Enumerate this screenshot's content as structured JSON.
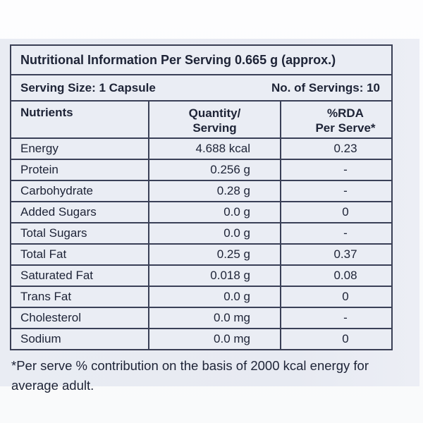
{
  "label": {
    "title": "Nutritional Information Per Serving 0.665 g (approx.)",
    "serving_size": "Serving Size: 1 Capsule",
    "servings_count": "No. of Servings: 10",
    "colors": {
      "label_background": "#e8ebf2",
      "border": "#3a4057",
      "text": "#1d2336"
    }
  },
  "table": {
    "headers": {
      "col1": "Nutrients",
      "col2_line1": "Quantity/",
      "col2_line2": "Serving",
      "col3_line1": "%RDA",
      "col3_line2": "Per Serve*"
    },
    "rows": [
      {
        "name": "Energy",
        "qty": "4.688 kcal",
        "rda": "0.23"
      },
      {
        "name": "Protein",
        "qty": "0.256 g",
        "rda": "-"
      },
      {
        "name": "Carbohydrate",
        "qty": "0.28 g",
        "rda": "-"
      },
      {
        "name": "Added Sugars",
        "qty": "0.0 g",
        "rda": "0"
      },
      {
        "name": "Total Sugars",
        "qty": "0.0 g",
        "rda": "-"
      },
      {
        "name": "Total Fat",
        "qty": "0.25 g",
        "rda": "0.37"
      },
      {
        "name": "Saturated Fat",
        "qty": "0.018 g",
        "rda": "0.08"
      },
      {
        "name": "Trans Fat",
        "qty": "0.0 g",
        "rda": "0"
      },
      {
        "name": "Cholesterol",
        "qty": "0.0 mg",
        "rda": "-"
      },
      {
        "name": "Sodium",
        "qty": "0.0 mg",
        "rda": "0"
      }
    ],
    "footnote_line1": "*Per serve % contribution on the basis of 2000 kcal energy for",
    "footnote_line2": "average adult."
  }
}
